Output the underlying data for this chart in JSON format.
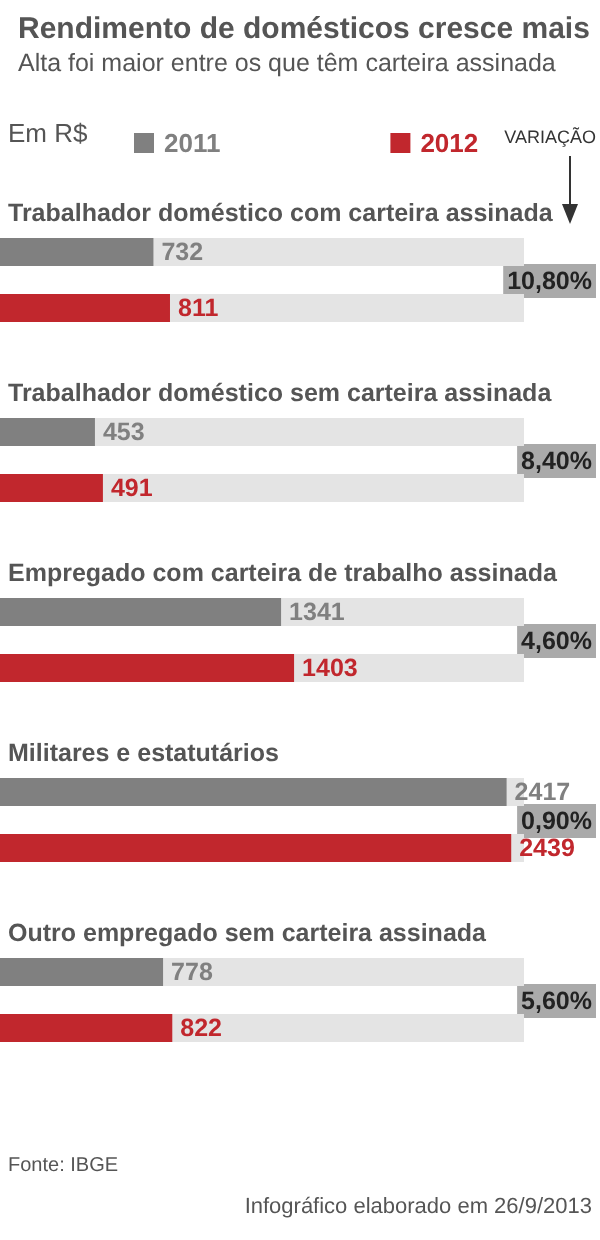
{
  "chart_data": {
    "type": "bar",
    "orientation": "horizontal",
    "title": "Rendimento de domésticos cresce mais",
    "subtitle": "Alta foi maior entre os que têm carteira assinada",
    "legend_title": "Em R$",
    "categories": [
      "Trabalhador doméstico com carteira assinada",
      "Trabalhador doméstico sem carteira assinada",
      "Empregado com carteira de trabalho assinada",
      "Militares e estatutários",
      "Outro empregado sem carteira assinada"
    ],
    "series": [
      {
        "name": "2011",
        "color": "#808080",
        "values": [
          732,
          453,
          1341,
          2417,
          778
        ]
      },
      {
        "name": "2012",
        "color": "#c1272d",
        "values": [
          811,
          491,
          1403,
          2439,
          822
        ]
      }
    ],
    "tick_labels": false,
    "legend": "top",
    "data_labels": true,
    "annotations": [
      "VARIAÇÃO",
      "10,80%",
      "8,40%",
      "4,60%",
      "0,90%",
      "5,60%",
      "Fonte: IBGE",
      "Infográfico elaborado em 26/9/2013"
    ]
  }
}
